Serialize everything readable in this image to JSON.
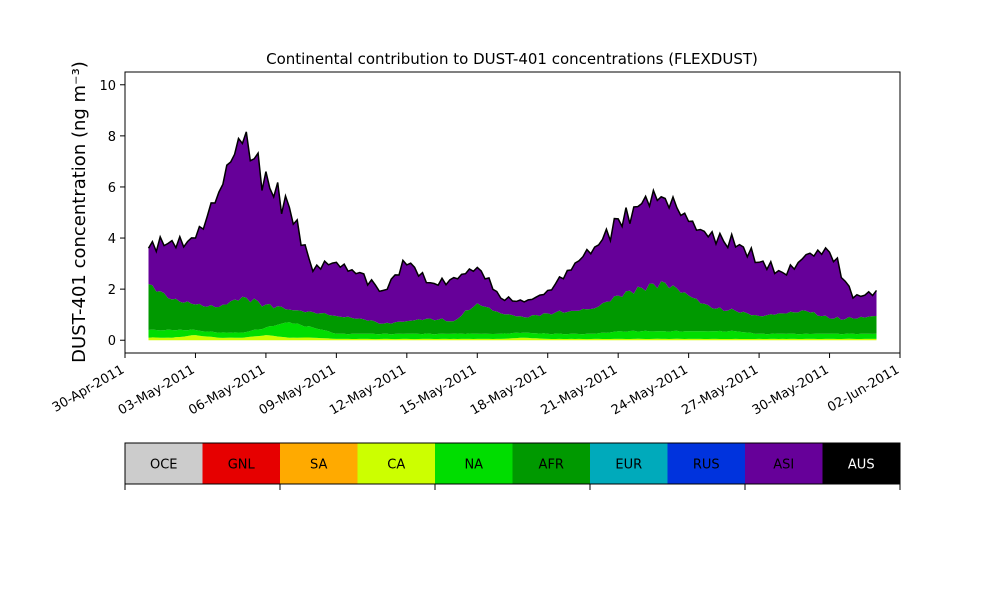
{
  "chart_data": {
    "type": "area",
    "title": "Continental contribution to DUST-401 concentrations (FLEXDUST)",
    "ylabel": "DUST-401 concentration (ng m⁻³)",
    "xlabel": "",
    "stacked": true,
    "xlim": [
      "2011-04-30",
      "2011-06-02"
    ],
    "ylim": [
      -0.5,
      10.5
    ],
    "y_ticks": [
      0,
      2,
      4,
      6,
      8,
      10
    ],
    "x_ticks": [
      "30-Apr-2011",
      "03-May-2011",
      "06-May-2011",
      "09-May-2011",
      "12-May-2011",
      "15-May-2011",
      "18-May-2011",
      "21-May-2011",
      "24-May-2011",
      "27-May-2011",
      "30-May-2011",
      "02-Jun-2011"
    ],
    "series_order": [
      "OCE",
      "GNL",
      "SA",
      "CA",
      "NA",
      "AFR",
      "EUR",
      "RUS",
      "ASI",
      "AUS"
    ],
    "series_colors": {
      "OCE": "#cccccc",
      "GNL": "#e60000",
      "SA": "#ffaa00",
      "CA": "#ccff00",
      "NA": "#00dd00",
      "AFR": "#009900",
      "EUR": "#00aabb",
      "RUS": "#0033dd",
      "ASI": "#660099",
      "AUS": "#000000"
    },
    "x": [
      "2011-05-01",
      "2011-05-02",
      "2011-05-03",
      "2011-05-04",
      "2011-05-05",
      "2011-05-06",
      "2011-05-07",
      "2011-05-08",
      "2011-05-09",
      "2011-05-10",
      "2011-05-11",
      "2011-05-12",
      "2011-05-13",
      "2011-05-14",
      "2011-05-15",
      "2011-05-16",
      "2011-05-17",
      "2011-05-18",
      "2011-05-19",
      "2011-05-20",
      "2011-05-21",
      "2011-05-22",
      "2011-05-23",
      "2011-05-24",
      "2011-05-25",
      "2011-05-26",
      "2011-05-27",
      "2011-05-28",
      "2011-05-29",
      "2011-05-30",
      "2011-05-31",
      "2011-06-01"
    ],
    "series": [
      {
        "name": "CA",
        "values": [
          0.1,
          0.1,
          0.2,
          0.1,
          0.1,
          0.2,
          0.1,
          0.1,
          0.05,
          0.05,
          0.05,
          0.05,
          0.05,
          0.05,
          0.05,
          0.05,
          0.1,
          0.05,
          0.05,
          0.05,
          0.05,
          0.05,
          0.05,
          0.05,
          0.05,
          0.05,
          0.05,
          0.05,
          0.05,
          0.05,
          0.05,
          0.05
        ]
      },
      {
        "name": "NA",
        "values": [
          0.3,
          0.3,
          0.2,
          0.2,
          0.2,
          0.3,
          0.6,
          0.4,
          0.2,
          0.2,
          0.2,
          0.2,
          0.2,
          0.2,
          0.2,
          0.2,
          0.2,
          0.2,
          0.2,
          0.2,
          0.3,
          0.3,
          0.3,
          0.3,
          0.3,
          0.3,
          0.2,
          0.2,
          0.2,
          0.2,
          0.2,
          0.2
        ]
      },
      {
        "name": "AFR",
        "values": [
          1.8,
          1.2,
          1.0,
          1.0,
          1.4,
          0.9,
          0.5,
          0.6,
          0.7,
          0.6,
          0.4,
          0.5,
          0.6,
          0.5,
          1.2,
          0.8,
          0.6,
          0.8,
          0.9,
          1.0,
          1.4,
          1.7,
          1.9,
          1.4,
          0.9,
          0.8,
          0.7,
          0.8,
          0.9,
          0.6,
          0.6,
          0.7
        ]
      },
      {
        "name": "ASI",
        "values": [
          1.4,
          2.3,
          2.6,
          4.5,
          6.0,
          5.2,
          4.0,
          1.6,
          2.1,
          1.8,
          1.3,
          2.2,
          1.4,
          1.7,
          1.4,
          0.6,
          0.6,
          0.9,
          1.6,
          2.4,
          3.0,
          3.3,
          3.3,
          2.9,
          3.0,
          2.5,
          2.1,
          1.6,
          2.2,
          2.6,
          0.8,
          1.0
        ]
      }
    ],
    "legend": [
      "OCE",
      "GNL",
      "SA",
      "CA",
      "NA",
      "AFR",
      "EUR",
      "RUS",
      "ASI",
      "AUS"
    ],
    "legend_placement": "bottom"
  }
}
